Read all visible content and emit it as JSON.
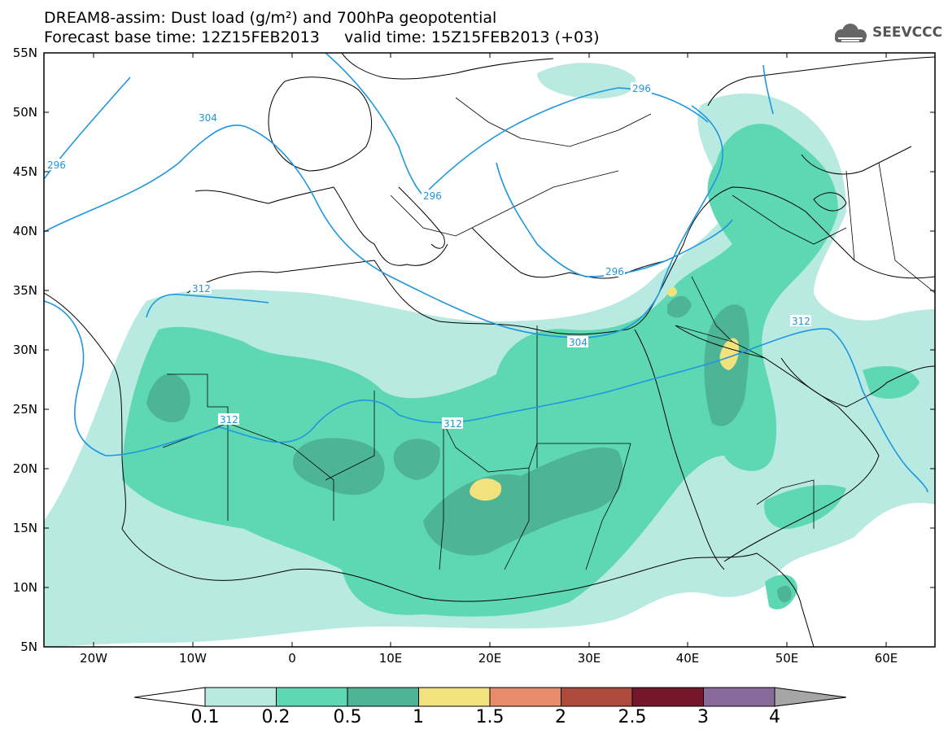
{
  "title": {
    "line1": "DREAM8-assim: Dust load (g/m²) and 700hPa geopotential",
    "line2": "Forecast base time: 12Z15FEB2013     valid time: 15Z15FEB2013 (+03)"
  },
  "logo": {
    "text": "SEEVCCC",
    "icon": "cloud-icon"
  },
  "axes": {
    "lat_labels": [
      "55N",
      "50N",
      "45N",
      "40N",
      "35N",
      "30N",
      "25N",
      "20N",
      "15N",
      "10N",
      "5N"
    ],
    "lon_labels": [
      "20W",
      "10W",
      "0",
      "10E",
      "20E",
      "30E",
      "40E",
      "50E",
      "60E"
    ]
  },
  "contours": {
    "labels": [
      "296",
      "304",
      "296",
      "296",
      "296",
      "312",
      "304",
      "312",
      "312",
      "312"
    ]
  },
  "colorbar": {
    "ticks": [
      "0.1",
      "0.2",
      "0.5",
      "1",
      "1.5",
      "2",
      "2.5",
      "3",
      "4"
    ],
    "colors": [
      "#b8eae2",
      "#5ed8b2",
      "#4eb496",
      "#f2e27e",
      "#e88c6a",
      "#ae4a3c",
      "#76162a",
      "#8a6a9a"
    ],
    "low_color": "#ffffff",
    "high_color": "#a6a6a6"
  }
}
